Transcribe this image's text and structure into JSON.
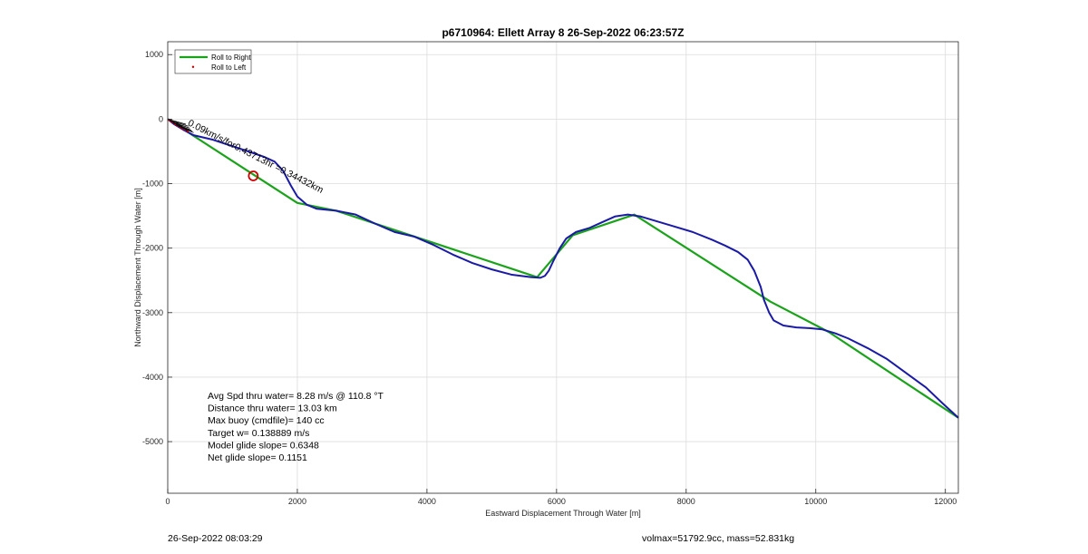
{
  "chart_data": {
    "type": "line",
    "title": "p6710964: Ellett Array 8 26-Sep-2022 06:23:57Z",
    "xlabel": "Eastward Displacement Through Water [m]",
    "ylabel": "Northward Displacement Through Water [m]",
    "xlim": [
      0,
      12200
    ],
    "ylim": [
      -5800,
      1200
    ],
    "xticks": [
      0,
      2000,
      4000,
      6000,
      8000,
      10000,
      12000
    ],
    "yticks": [
      1000,
      0,
      -1000,
      -2000,
      -3000,
      -4000,
      -5000
    ],
    "grid": true,
    "legend": {
      "placement": "top-left",
      "entries": [
        "Roll to Right",
        "Roll to Left"
      ]
    },
    "colors": {
      "roll_right": "#1aa31a",
      "track": "#1a1aa6",
      "roll_left": "#cc0000",
      "marker": "#cc0000"
    },
    "series": [
      {
        "name": "Roll to Right",
        "x": [
          0,
          2000,
          2600,
          5700,
          6250,
          7200,
          9300,
          10200,
          12200
        ],
        "y": [
          0,
          -1300,
          -1420,
          -2450,
          -1800,
          -1480,
          -2830,
          -3300,
          -4630
        ]
      },
      {
        "name": "",
        "x": [
          0,
          100,
          250,
          400,
          700,
          1000,
          1300,
          1500,
          1650,
          1780,
          1900,
          2000,
          2150,
          2300,
          2600,
          2900,
          3200,
          3500,
          3800,
          4100,
          4400,
          4700,
          5000,
          5300,
          5600,
          5750,
          5820,
          5880,
          5950,
          6050,
          6150,
          6300,
          6500,
          6700,
          6900,
          7100,
          7300,
          7500,
          7800,
          8100,
          8400,
          8600,
          8800,
          8950,
          9050,
          9150,
          9200,
          9280,
          9350,
          9500,
          9700,
          9900,
          10100,
          10300,
          10500,
          10800,
          11100,
          11400,
          11700,
          11950,
          12200
        ],
        "y": [
          0,
          -80,
          -170,
          -250,
          -320,
          -420,
          -520,
          -590,
          -660,
          -800,
          -1030,
          -1200,
          -1330,
          -1390,
          -1420,
          -1480,
          -1620,
          -1750,
          -1820,
          -1950,
          -2100,
          -2230,
          -2330,
          -2410,
          -2450,
          -2460,
          -2430,
          -2350,
          -2200,
          -2000,
          -1850,
          -1750,
          -1690,
          -1600,
          -1510,
          -1480,
          -1510,
          -1570,
          -1660,
          -1750,
          -1870,
          -1960,
          -2060,
          -2180,
          -2350,
          -2600,
          -2800,
          -3000,
          -3120,
          -3200,
          -3230,
          -3240,
          -3260,
          -3320,
          -3400,
          -3550,
          -3720,
          -3940,
          -4160,
          -4400,
          -4630
        ]
      },
      {
        "name": "Roll to Left",
        "x": [
          10,
          40,
          70,
          110,
          150,
          190,
          230,
          270,
          310
        ],
        "y": [
          -10,
          -30,
          -55,
          -80,
          -105,
          -130,
          -150,
          -170,
          -190
        ]
      }
    ],
    "annotations": {
      "rotated_text": "0.09km/s/for0.43713hr =0.34432km",
      "marker_point": {
        "x": 1320,
        "y": -880
      },
      "drift_vectors": {
        "origins": [
          [
            0,
            0
          ],
          [
            30,
            -20
          ],
          [
            60,
            -40
          ],
          [
            90,
            -60
          ],
          [
            130,
            -90
          ],
          [
            170,
            -110
          ],
          [
            210,
            -130
          ],
          [
            250,
            -150
          ],
          [
            300,
            -180
          ]
        ],
        "tips": [
          [
            280,
            -80
          ],
          [
            320,
            -110
          ],
          [
            340,
            -140
          ],
          [
            360,
            -170
          ],
          [
            380,
            -190
          ],
          [
            400,
            -210
          ],
          [
            300,
            -160
          ],
          [
            200,
            -90
          ],
          [
            120,
            -40
          ]
        ]
      },
      "stats": [
        "Avg Spd thru water=  8.28 m/s @ 110.8 °T",
        "Distance thru water= 13.03 km",
        "Max buoy (cmdfile)= 140 cc",
        "Target w= 0.138889 m/s",
        "Model glide slope= 0.6348",
        "Net glide slope= 0.1151"
      ]
    }
  },
  "footer": {
    "left": "26-Sep-2022 08:03:29",
    "right": "volmax=51792.9cc, mass=52.831kg"
  }
}
